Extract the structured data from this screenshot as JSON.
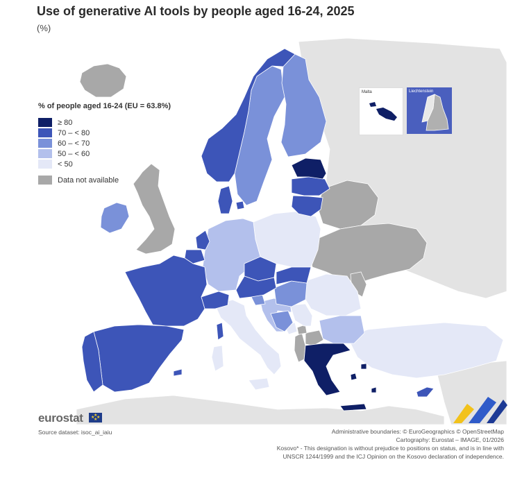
{
  "title": "Use of generative AI tools by people aged 16-24, 2025",
  "subtitle": "(%)",
  "legend": {
    "title": "% of people aged 16-24 (EU = 63.8%)",
    "classes": [
      {
        "label": "≥ 80",
        "color": "#0f1f66"
      },
      {
        "label": "70 – < 80",
        "color": "#3d55b8"
      },
      {
        "label": "60 – < 70",
        "color": "#7a91d9"
      },
      {
        "label": "50 – < 60",
        "color": "#b3c0ec"
      },
      {
        "label": "< 50",
        "color": "#e4e8f7"
      }
    ],
    "na": {
      "label": "Data not available",
      "color": "#a8a8a8"
    }
  },
  "insets": {
    "malta": "Malta",
    "liechtenstein": "Liechtenstein"
  },
  "brand": "eurostat",
  "source": "Source dataset: isoc_ai_iaiu",
  "credits": [
    "Administrative boundaries: © EuroGeographics © OpenStreetMap",
    "Cartography: Eurostat – IMAGE, 01/2026",
    "Kosovo* - This designation is without prejudice to positions on status, and is in line with",
    "UNSCR 1244/1999 and the ICJ Opinion on the Kosovo declaration of independence."
  ],
  "regions": [
    {
      "name": "greece",
      "class": "≥ 80"
    },
    {
      "name": "estonia",
      "class": "≥ 80"
    },
    {
      "name": "norway",
      "class": "70 – < 80"
    },
    {
      "name": "france",
      "class": "70 – < 80"
    },
    {
      "name": "spain",
      "class": "70 – < 80"
    },
    {
      "name": "portugal",
      "class": "70 – < 80"
    },
    {
      "name": "denmark",
      "class": "70 – < 80"
    },
    {
      "name": "latvia",
      "class": "70 – < 80"
    },
    {
      "name": "lithuania",
      "class": "70 – < 80"
    },
    {
      "name": "czechia",
      "class": "70 – < 80"
    },
    {
      "name": "austria",
      "class": "70 – < 80"
    },
    {
      "name": "slovakia",
      "class": "70 – < 80"
    },
    {
      "name": "switzerland",
      "class": "70 – < 80"
    },
    {
      "name": "belgium",
      "class": "70 – < 80"
    },
    {
      "name": "netherlands",
      "class": "70 – < 80"
    },
    {
      "name": "cyprus",
      "class": "70 – < 80"
    },
    {
      "name": "malta",
      "class": "≥ 80"
    },
    {
      "name": "liechtenstein",
      "class": "70 – < 80"
    },
    {
      "name": "sweden",
      "class": "60 – < 70"
    },
    {
      "name": "finland",
      "class": "60 – < 70"
    },
    {
      "name": "ireland",
      "class": "60 – < 70"
    },
    {
      "name": "hungary",
      "class": "60 – < 70"
    },
    {
      "name": "bosnia-herzegovina",
      "class": "60 – < 70"
    },
    {
      "name": "slovenia",
      "class": "60 – < 70"
    },
    {
      "name": "germany",
      "class": "50 – < 60"
    },
    {
      "name": "bulgaria",
      "class": "50 – < 60"
    },
    {
      "name": "croatia",
      "class": "50 – < 60"
    },
    {
      "name": "italy",
      "class": "< 50"
    },
    {
      "name": "poland",
      "class": "< 50"
    },
    {
      "name": "romania",
      "class": "< 50"
    },
    {
      "name": "turkey",
      "class": "< 50"
    },
    {
      "name": "serbia",
      "class": "< 50"
    },
    {
      "name": "montenegro",
      "class": "< 50"
    },
    {
      "name": "iceland",
      "class": "Data not available"
    },
    {
      "name": "united-kingdom",
      "class": "Data not available"
    },
    {
      "name": "ukraine",
      "class": "Data not available"
    },
    {
      "name": "belarus",
      "class": "Data not available"
    },
    {
      "name": "moldova",
      "class": "Data not available"
    },
    {
      "name": "albania",
      "class": "Data not available"
    },
    {
      "name": "north-macedonia",
      "class": "Data not available"
    },
    {
      "name": "kosovo",
      "class": "Data not available"
    }
  ],
  "colors": {
    "sea": "#ffffff",
    "outside": "#e3e3e3",
    "border": "#ffffff"
  }
}
